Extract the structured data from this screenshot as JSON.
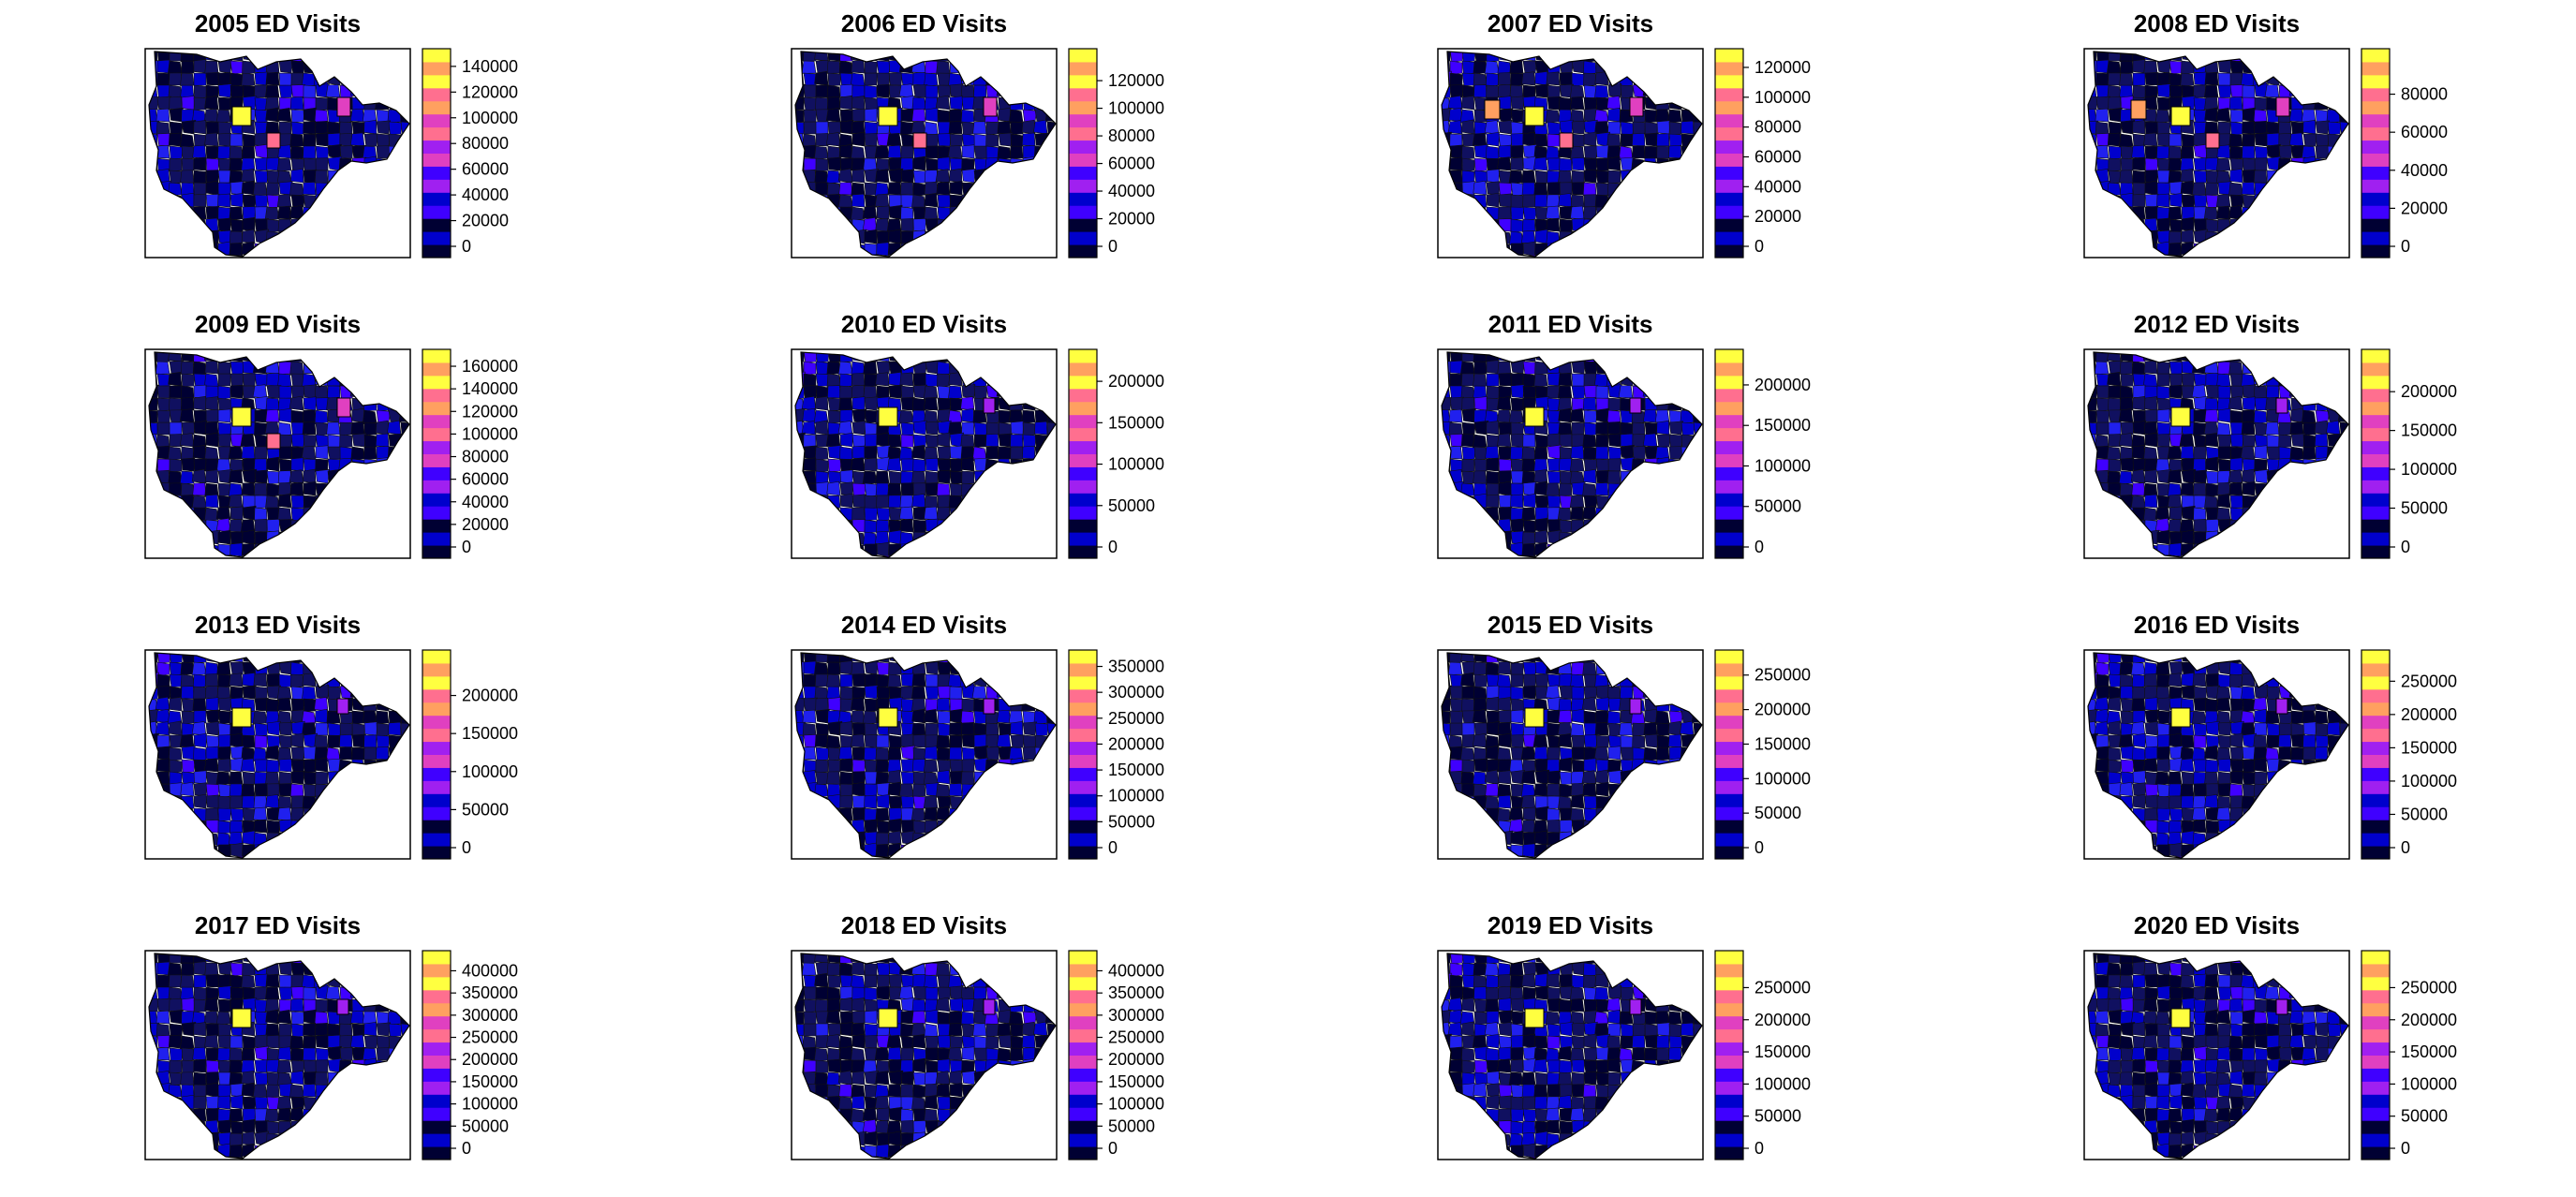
{
  "chart_data": {
    "type": "choropleth-map-grid",
    "color_scale": [
      "#000033",
      "#0000cc",
      "#3f00ff",
      "#a020f0",
      "#e040c0",
      "#ff6f8f",
      "#ffa060",
      "#ffff40"
    ],
    "panels": [
      {
        "title": "2005 ED Visits",
        "ticks": [
          0,
          20000,
          40000,
          60000,
          80000,
          100000,
          120000,
          140000
        ],
        "max": 145000
      },
      {
        "title": "2006 ED Visits",
        "ticks": [
          0,
          20000,
          40000,
          60000,
          80000,
          100000,
          120000
        ],
        "max": 135000
      },
      {
        "title": "2007 ED Visits",
        "ticks": [
          0,
          20000,
          40000,
          60000,
          80000,
          100000,
          120000
        ],
        "max": 125000
      },
      {
        "title": "2008 ED Visits",
        "ticks": [
          0,
          20000,
          40000,
          60000,
          80000
        ],
        "max": 98000
      },
      {
        "title": "2009 ED Visits",
        "ticks": [
          0,
          20000,
          40000,
          60000,
          80000,
          100000,
          120000,
          140000,
          160000
        ],
        "max": 165000
      },
      {
        "title": "2010 ED Visits",
        "ticks": [
          0,
          50000,
          100000,
          150000,
          200000
        ],
        "max": 225000
      },
      {
        "title": "2011 ED Visits",
        "ticks": [
          0,
          50000,
          100000,
          150000,
          200000
        ],
        "max": 230000
      },
      {
        "title": "2012 ED Visits",
        "ticks": [
          0,
          50000,
          100000,
          150000,
          200000
        ],
        "max": 240000
      },
      {
        "title": "2013 ED Visits",
        "ticks": [
          0,
          50000,
          100000,
          150000,
          200000
        ],
        "max": 245000
      },
      {
        "title": "2014 ED Visits",
        "ticks": [
          0,
          50000,
          100000,
          150000,
          200000,
          250000,
          300000,
          350000
        ],
        "max": 360000
      },
      {
        "title": "2015 ED Visits",
        "ticks": [
          0,
          50000,
          100000,
          150000,
          200000,
          250000
        ],
        "max": 270000
      },
      {
        "title": "2016 ED Visits",
        "ticks": [
          0,
          50000,
          100000,
          150000,
          200000,
          250000
        ],
        "max": 280000
      },
      {
        "title": "2017 ED Visits",
        "ticks": [
          0,
          50000,
          100000,
          150000,
          200000,
          250000,
          300000,
          350000,
          400000
        ],
        "max": 420000
      },
      {
        "title": "2018 ED Visits",
        "ticks": [
          0,
          50000,
          100000,
          150000,
          200000,
          250000,
          300000,
          350000,
          400000
        ],
        "max": 420000
      },
      {
        "title": "2019 ED Visits",
        "ticks": [
          0,
          50000,
          100000,
          150000,
          200000,
          250000
        ],
        "max": 290000
      },
      {
        "title": "2020 ED Visits",
        "ticks": [
          0,
          50000,
          100000,
          150000,
          200000,
          250000
        ],
        "max": 290000
      }
    ]
  }
}
